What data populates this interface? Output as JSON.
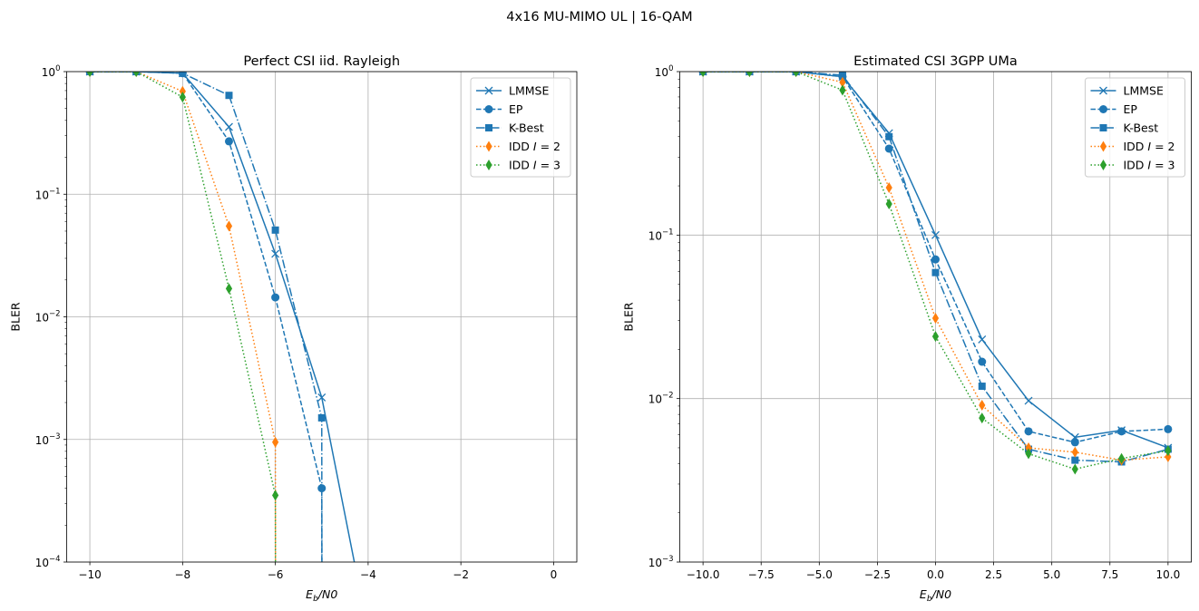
{
  "suptitle": "4x16 MU-MIMO UL | 16-QAM",
  "styles": {
    "LMMSE": {
      "color": "#1f77b4",
      "linestyle": "solid",
      "marker": "x"
    },
    "EP": {
      "color": "#1f77b4",
      "linestyle": "dashed",
      "marker": "o"
    },
    "K-Best": {
      "color": "#1f77b4",
      "linestyle": "dashdot",
      "marker": "s"
    },
    "IDD I = 2": {
      "color": "#ff7f0e",
      "linestyle": "dotted",
      "marker": "d"
    },
    "IDD I = 3": {
      "color": "#2ca02c",
      "linestyle": "dotted",
      "marker": "d"
    }
  },
  "chart_data": [
    {
      "type": "line",
      "title": "Perfect CSI iid. Rayleigh",
      "xlabel": "Eb/N0",
      "ylabel": "BLER",
      "xscale": "linear",
      "yscale": "log",
      "xlim": [
        -10.5,
        0.5
      ],
      "ylim": [
        0.0001,
        1
      ],
      "xticks": [
        -10,
        -8,
        -6,
        -4,
        -2,
        0
      ],
      "xtick_labels": [
        "−10",
        "−8",
        "−6",
        "−4",
        "−2",
        "0"
      ],
      "yticks": [
        0.0001,
        0.001,
        0.01,
        0.1,
        1
      ],
      "ytick_exponents": [
        "−4",
        "−3",
        "−2",
        "−1",
        "0"
      ],
      "grid": true,
      "legend": "top-right",
      "x": [
        -10,
        -9,
        -8,
        -7,
        -6,
        -5,
        -4
      ],
      "series": [
        {
          "name": "LMMSE",
          "values": [
            1,
            1,
            0.97,
            0.354,
            0.0327,
            0.0022,
            2.7e-05
          ]
        },
        {
          "name": "EP",
          "values": [
            1,
            1,
            0.97,
            0.27,
            0.0144,
            0.0004,
            0
          ]
        },
        {
          "name": "K-Best",
          "values": [
            1,
            1,
            0.97,
            0.64,
            0.051,
            0.0015,
            0
          ]
        },
        {
          "name": "IDD I = 2",
          "values": [
            1,
            1,
            0.69,
            0.055,
            0.00095,
            0,
            0
          ]
        },
        {
          "name": "IDD I = 3",
          "values": [
            1,
            1,
            0.62,
            0.017,
            0.00035,
            0,
            0
          ]
        }
      ]
    },
    {
      "type": "line",
      "title": "Estimated CSI 3GPP UMa",
      "xlabel": "Eb/N0",
      "ylabel": "BLER",
      "xscale": "linear",
      "yscale": "log",
      "xlim": [
        -11,
        11
      ],
      "ylim": [
        0.001,
        1
      ],
      "xticks": [
        -10,
        -7.5,
        -5,
        -2.5,
        0,
        2.5,
        5,
        7.5,
        10
      ],
      "xtick_labels": [
        "−10.0",
        "−7.5",
        "−5.0",
        "−2.5",
        "0.0",
        "2.5",
        "5.0",
        "7.5",
        "10.0"
      ],
      "yticks": [
        0.001,
        0.01,
        0.1,
        1
      ],
      "ytick_exponents": [
        "−3",
        "−2",
        "−1",
        "0"
      ],
      "grid": true,
      "legend": "top-right",
      "x": [
        -10,
        -8,
        -6,
        -4,
        -2,
        0,
        2,
        4,
        6,
        8,
        10
      ],
      "series": [
        {
          "name": "LMMSE",
          "values": [
            1,
            1,
            1,
            0.93,
            0.42,
            0.1,
            0.023,
            0.0097,
            0.0058,
            0.0064,
            0.005
          ]
        },
        {
          "name": "EP",
          "values": [
            1,
            1,
            1,
            0.93,
            0.338,
            0.071,
            0.0168,
            0.0063,
            0.0054,
            0.0063,
            0.0065
          ]
        },
        {
          "name": "K-Best",
          "values": [
            1,
            1,
            1,
            0.95,
            0.4,
            0.059,
            0.0119,
            0.0049,
            0.0042,
            0.0041,
            0.0049
          ]
        },
        {
          "name": "IDD I = 2",
          "values": [
            1,
            1,
            1,
            0.86,
            0.195,
            0.031,
            0.0091,
            0.005,
            0.0047,
            0.0042,
            0.0044
          ]
        },
        {
          "name": "IDD I = 3",
          "values": [
            1,
            1,
            1,
            0.77,
            0.155,
            0.024,
            0.0076,
            0.0046,
            0.0037,
            0.0043,
            0.0048
          ]
        }
      ]
    }
  ]
}
